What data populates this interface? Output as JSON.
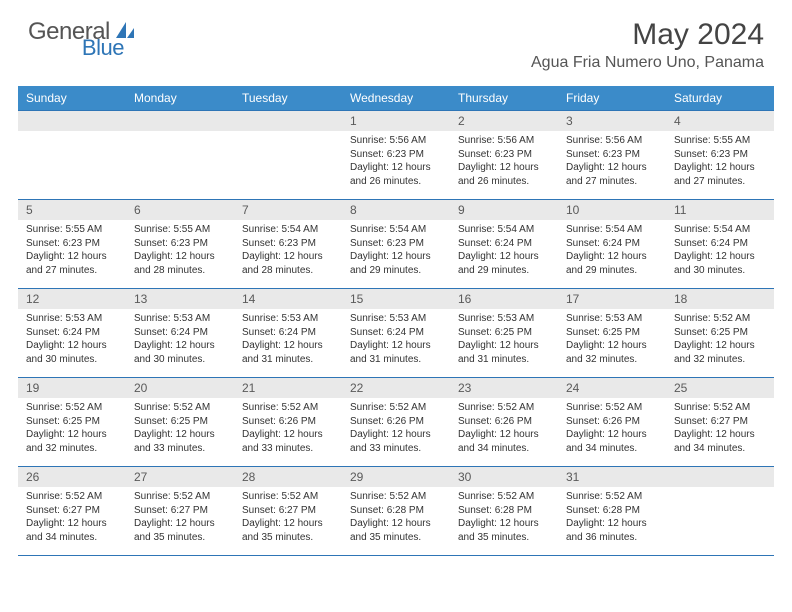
{
  "logo": {
    "general": "General",
    "blue": "Blue"
  },
  "title": "May 2024",
  "location": "Agua Fria Numero Uno, Panama",
  "colors": {
    "header_bg": "#3b8bc9",
    "border": "#2e75b6",
    "daynum_bg": "#e9e9e9",
    "text": "#333333",
    "logo_grey": "#555555",
    "logo_blue": "#2e75b6"
  },
  "weekdays": [
    "Sunday",
    "Monday",
    "Tuesday",
    "Wednesday",
    "Thursday",
    "Friday",
    "Saturday"
  ],
  "weeks": [
    [
      null,
      null,
      null,
      {
        "n": "1",
        "sunrise": "5:56 AM",
        "sunset": "6:23 PM",
        "daylight": "12 hours and 26 minutes."
      },
      {
        "n": "2",
        "sunrise": "5:56 AM",
        "sunset": "6:23 PM",
        "daylight": "12 hours and 26 minutes."
      },
      {
        "n": "3",
        "sunrise": "5:56 AM",
        "sunset": "6:23 PM",
        "daylight": "12 hours and 27 minutes."
      },
      {
        "n": "4",
        "sunrise": "5:55 AM",
        "sunset": "6:23 PM",
        "daylight": "12 hours and 27 minutes."
      }
    ],
    [
      {
        "n": "5",
        "sunrise": "5:55 AM",
        "sunset": "6:23 PM",
        "daylight": "12 hours and 27 minutes."
      },
      {
        "n": "6",
        "sunrise": "5:55 AM",
        "sunset": "6:23 PM",
        "daylight": "12 hours and 28 minutes."
      },
      {
        "n": "7",
        "sunrise": "5:54 AM",
        "sunset": "6:23 PM",
        "daylight": "12 hours and 28 minutes."
      },
      {
        "n": "8",
        "sunrise": "5:54 AM",
        "sunset": "6:23 PM",
        "daylight": "12 hours and 29 minutes."
      },
      {
        "n": "9",
        "sunrise": "5:54 AM",
        "sunset": "6:24 PM",
        "daylight": "12 hours and 29 minutes."
      },
      {
        "n": "10",
        "sunrise": "5:54 AM",
        "sunset": "6:24 PM",
        "daylight": "12 hours and 29 minutes."
      },
      {
        "n": "11",
        "sunrise": "5:54 AM",
        "sunset": "6:24 PM",
        "daylight": "12 hours and 30 minutes."
      }
    ],
    [
      {
        "n": "12",
        "sunrise": "5:53 AM",
        "sunset": "6:24 PM",
        "daylight": "12 hours and 30 minutes."
      },
      {
        "n": "13",
        "sunrise": "5:53 AM",
        "sunset": "6:24 PM",
        "daylight": "12 hours and 30 minutes."
      },
      {
        "n": "14",
        "sunrise": "5:53 AM",
        "sunset": "6:24 PM",
        "daylight": "12 hours and 31 minutes."
      },
      {
        "n": "15",
        "sunrise": "5:53 AM",
        "sunset": "6:24 PM",
        "daylight": "12 hours and 31 minutes."
      },
      {
        "n": "16",
        "sunrise": "5:53 AM",
        "sunset": "6:25 PM",
        "daylight": "12 hours and 31 minutes."
      },
      {
        "n": "17",
        "sunrise": "5:53 AM",
        "sunset": "6:25 PM",
        "daylight": "12 hours and 32 minutes."
      },
      {
        "n": "18",
        "sunrise": "5:52 AM",
        "sunset": "6:25 PM",
        "daylight": "12 hours and 32 minutes."
      }
    ],
    [
      {
        "n": "19",
        "sunrise": "5:52 AM",
        "sunset": "6:25 PM",
        "daylight": "12 hours and 32 minutes."
      },
      {
        "n": "20",
        "sunrise": "5:52 AM",
        "sunset": "6:25 PM",
        "daylight": "12 hours and 33 minutes."
      },
      {
        "n": "21",
        "sunrise": "5:52 AM",
        "sunset": "6:26 PM",
        "daylight": "12 hours and 33 minutes."
      },
      {
        "n": "22",
        "sunrise": "5:52 AM",
        "sunset": "6:26 PM",
        "daylight": "12 hours and 33 minutes."
      },
      {
        "n": "23",
        "sunrise": "5:52 AM",
        "sunset": "6:26 PM",
        "daylight": "12 hours and 34 minutes."
      },
      {
        "n": "24",
        "sunrise": "5:52 AM",
        "sunset": "6:26 PM",
        "daylight": "12 hours and 34 minutes."
      },
      {
        "n": "25",
        "sunrise": "5:52 AM",
        "sunset": "6:27 PM",
        "daylight": "12 hours and 34 minutes."
      }
    ],
    [
      {
        "n": "26",
        "sunrise": "5:52 AM",
        "sunset": "6:27 PM",
        "daylight": "12 hours and 34 minutes."
      },
      {
        "n": "27",
        "sunrise": "5:52 AM",
        "sunset": "6:27 PM",
        "daylight": "12 hours and 35 minutes."
      },
      {
        "n": "28",
        "sunrise": "5:52 AM",
        "sunset": "6:27 PM",
        "daylight": "12 hours and 35 minutes."
      },
      {
        "n": "29",
        "sunrise": "5:52 AM",
        "sunset": "6:28 PM",
        "daylight": "12 hours and 35 minutes."
      },
      {
        "n": "30",
        "sunrise": "5:52 AM",
        "sunset": "6:28 PM",
        "daylight": "12 hours and 35 minutes."
      },
      {
        "n": "31",
        "sunrise": "5:52 AM",
        "sunset": "6:28 PM",
        "daylight": "12 hours and 36 minutes."
      },
      null
    ]
  ],
  "labels": {
    "sunrise": "Sunrise: ",
    "sunset": "Sunset: ",
    "daylight": "Daylight: "
  }
}
